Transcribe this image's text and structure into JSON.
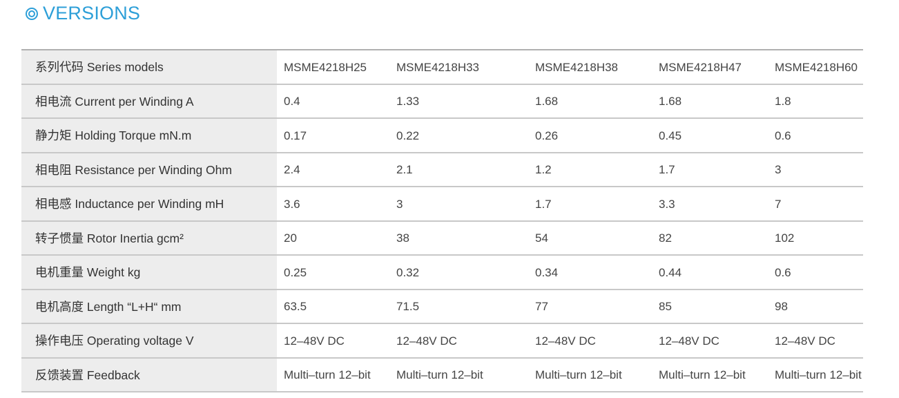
{
  "title": "VERSIONS",
  "colors": {
    "accent": "#2d9fd8",
    "label_bg": "#ededed",
    "rule": "#c8c8c8"
  },
  "table": {
    "rows": [
      {
        "label": "系列代码 Series models",
        "values": [
          "MSME4218H25",
          "MSME4218H33",
          "MSME4218H38",
          "MSME4218H47",
          "MSME4218H60"
        ]
      },
      {
        "label": "相电流 Current per Winding A",
        "values": [
          "0.4",
          "1.33",
          "1.68",
          "1.68",
          "1.8"
        ]
      },
      {
        "label": "静力矩 Holding Torque mN.m",
        "values": [
          "0.17",
          "0.22",
          "0.26",
          "0.45",
          "0.6"
        ]
      },
      {
        "label": "相电阻 Resistance per Winding  Ohm",
        "values": [
          "2.4",
          "2.1",
          "1.2",
          "1.7",
          "3"
        ]
      },
      {
        "label": "相电感 Inductance per Winding  mH",
        "values": [
          "3.6",
          "3",
          "1.7",
          "3.3",
          "7"
        ]
      },
      {
        "label": "转子惯量 Rotor Inertia  gcm²",
        "values": [
          "20",
          "38",
          "54",
          "82",
          "102"
        ]
      },
      {
        "label": "电机重量 Weight kg",
        "values": [
          "0.25",
          "0.32",
          "0.34",
          "0.44",
          "0.6"
        ]
      },
      {
        "label": "电机高度 Length “L+H“  mm",
        "values": [
          "63.5",
          "71.5",
          "77",
          "85",
          "98"
        ]
      },
      {
        "label": "操作电压 Operating voltage V",
        "values": [
          "12–48V DC",
          "12–48V DC",
          "12–48V DC",
          "12–48V DC",
          "12–48V DC"
        ]
      },
      {
        "label": "反馈装置 Feedback",
        "values": [
          "Multi–turn 12–bit",
          "Multi–turn 12–bit",
          "Multi–turn 12–bit",
          "Multi–turn 12–bit",
          "Multi–turn 12–bit"
        ]
      }
    ]
  }
}
